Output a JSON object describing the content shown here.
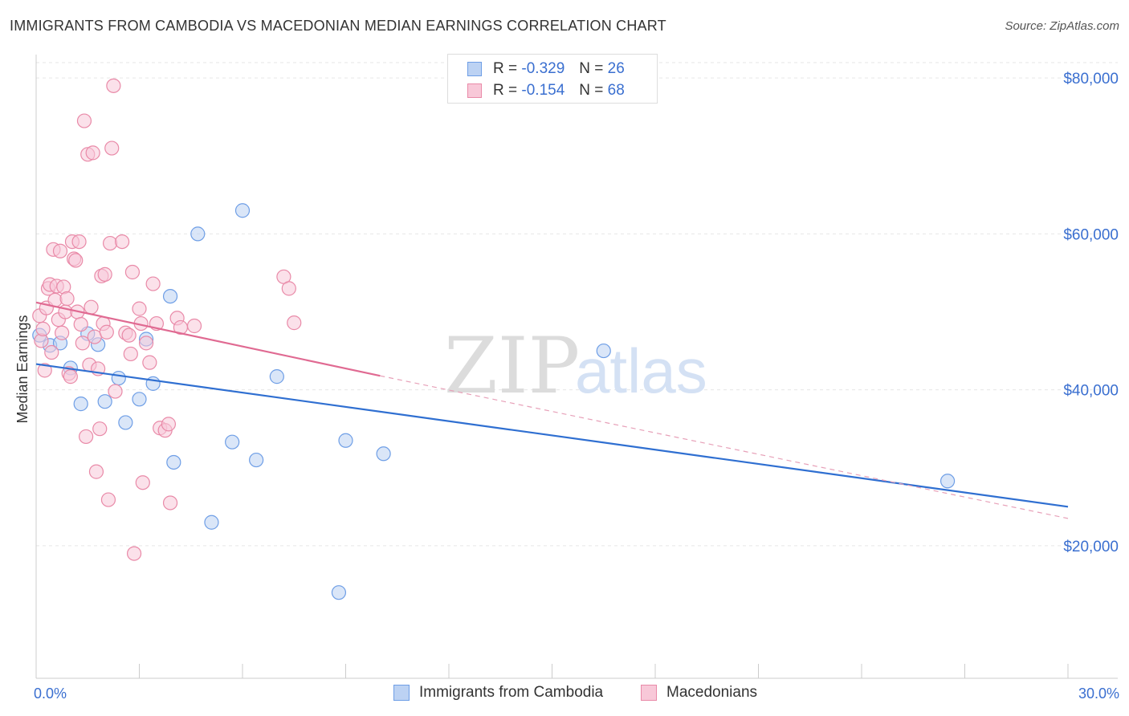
{
  "chart_data": {
    "type": "scatter",
    "title": "IMMIGRANTS FROM CAMBODIA VS MACEDONIAN MEDIAN EARNINGS CORRELATION CHART",
    "source": "Source: ZipAtlas.com",
    "xlabel": "",
    "ylabel": "Median Earnings",
    "xlim": [
      0,
      30
    ],
    "ylim": [
      3000,
      83000
    ],
    "x_tick_labels": {
      "min": "0.0%",
      "max": "30.0%"
    },
    "y_ticks": [
      {
        "value": 20000,
        "label": "$20,000"
      },
      {
        "value": 40000,
        "label": "$40,000"
      },
      {
        "value": 60000,
        "label": "$60,000"
      },
      {
        "value": 80000,
        "label": "$80,000"
      }
    ],
    "grid": true,
    "watermark": {
      "zip": "ZIP",
      "atlas": "atlas"
    },
    "legend_stats": [
      {
        "r_label": "R =",
        "r_value": "-0.329",
        "n_label": "N =",
        "n_value": "26"
      },
      {
        "r_label": "R =",
        "r_value": "-0.154",
        "n_label": "N =",
        "n_value": "68"
      }
    ],
    "series": [
      {
        "name": "Immigrants from Cambodia",
        "color": "#6e9ee6",
        "fill": "#bcd2f3",
        "trend": {
          "x0": 0,
          "y0": 43300,
          "x1": 30,
          "y1": 25000,
          "dashed_extension": false
        },
        "points": [
          [
            0.1,
            47000
          ],
          [
            0.4,
            45700
          ],
          [
            0.7,
            46000
          ],
          [
            1.0,
            42800
          ],
          [
            1.3,
            38200
          ],
          [
            1.5,
            47200
          ],
          [
            1.8,
            45800
          ],
          [
            2.0,
            38500
          ],
          [
            2.4,
            41500
          ],
          [
            2.6,
            35800
          ],
          [
            3.0,
            38800
          ],
          [
            3.2,
            46500
          ],
          [
            3.4,
            40800
          ],
          [
            3.9,
            52000
          ],
          [
            4.0,
            30700
          ],
          [
            4.7,
            60000
          ],
          [
            5.1,
            23000
          ],
          [
            5.7,
            33300
          ],
          [
            6.0,
            63000
          ],
          [
            6.4,
            31000
          ],
          [
            7.0,
            41700
          ],
          [
            8.8,
            14000
          ],
          [
            9.0,
            33500
          ],
          [
            10.1,
            31800
          ],
          [
            16.5,
            45000
          ],
          [
            26.5,
            28300
          ]
        ]
      },
      {
        "name": "Macedonians",
        "color": "#e98aa8",
        "fill": "#f8c8d8",
        "trend": {
          "x0": 0,
          "y0": 51200,
          "x1": 10.0,
          "y1": 41800,
          "dashed_extension": true,
          "dash_to_x": 30,
          "dash_to_y": 23500
        },
        "points": [
          [
            0.1,
            49500
          ],
          [
            0.15,
            46300
          ],
          [
            0.2,
            47800
          ],
          [
            0.3,
            50500
          ],
          [
            0.35,
            53000
          ],
          [
            0.4,
            53500
          ],
          [
            0.5,
            58000
          ],
          [
            0.55,
            51500
          ],
          [
            0.6,
            53300
          ],
          [
            0.65,
            49000
          ],
          [
            0.7,
            57800
          ],
          [
            0.75,
            47300
          ],
          [
            0.8,
            53200
          ],
          [
            0.85,
            50000
          ],
          [
            0.9,
            51700
          ],
          [
            0.95,
            42100
          ],
          [
            1.0,
            41700
          ],
          [
            1.05,
            59000
          ],
          [
            1.1,
            56800
          ],
          [
            1.15,
            56600
          ],
          [
            1.2,
            50000
          ],
          [
            1.25,
            59000
          ],
          [
            1.3,
            48400
          ],
          [
            1.35,
            46000
          ],
          [
            1.4,
            74500
          ],
          [
            1.45,
            34000
          ],
          [
            1.5,
            70200
          ],
          [
            1.55,
            43200
          ],
          [
            1.6,
            50600
          ],
          [
            1.65,
            70400
          ],
          [
            1.7,
            46800
          ],
          [
            1.75,
            29500
          ],
          [
            1.8,
            42700
          ],
          [
            1.85,
            35000
          ],
          [
            1.9,
            54600
          ],
          [
            1.95,
            48500
          ],
          [
            2.0,
            54800
          ],
          [
            2.05,
            47400
          ],
          [
            2.1,
            25900
          ],
          [
            2.15,
            58800
          ],
          [
            2.2,
            71000
          ],
          [
            2.25,
            79000
          ],
          [
            2.3,
            39800
          ],
          [
            2.5,
            59000
          ],
          [
            2.6,
            47300
          ],
          [
            2.7,
            47000
          ],
          [
            2.75,
            44600
          ],
          [
            2.8,
            55100
          ],
          [
            2.85,
            19000
          ],
          [
            3.0,
            50400
          ],
          [
            3.05,
            48500
          ],
          [
            3.1,
            28100
          ],
          [
            3.2,
            46000
          ],
          [
            3.3,
            43500
          ],
          [
            3.4,
            53600
          ],
          [
            3.5,
            48500
          ],
          [
            3.6,
            35100
          ],
          [
            3.75,
            34800
          ],
          [
            3.85,
            35600
          ],
          [
            3.9,
            25500
          ],
          [
            4.1,
            49200
          ],
          [
            4.2,
            48000
          ],
          [
            4.6,
            48200
          ],
          [
            7.2,
            54500
          ],
          [
            7.35,
            53000
          ],
          [
            7.5,
            48600
          ],
          [
            0.25,
            42500
          ],
          [
            0.45,
            44800
          ]
        ]
      }
    ]
  }
}
